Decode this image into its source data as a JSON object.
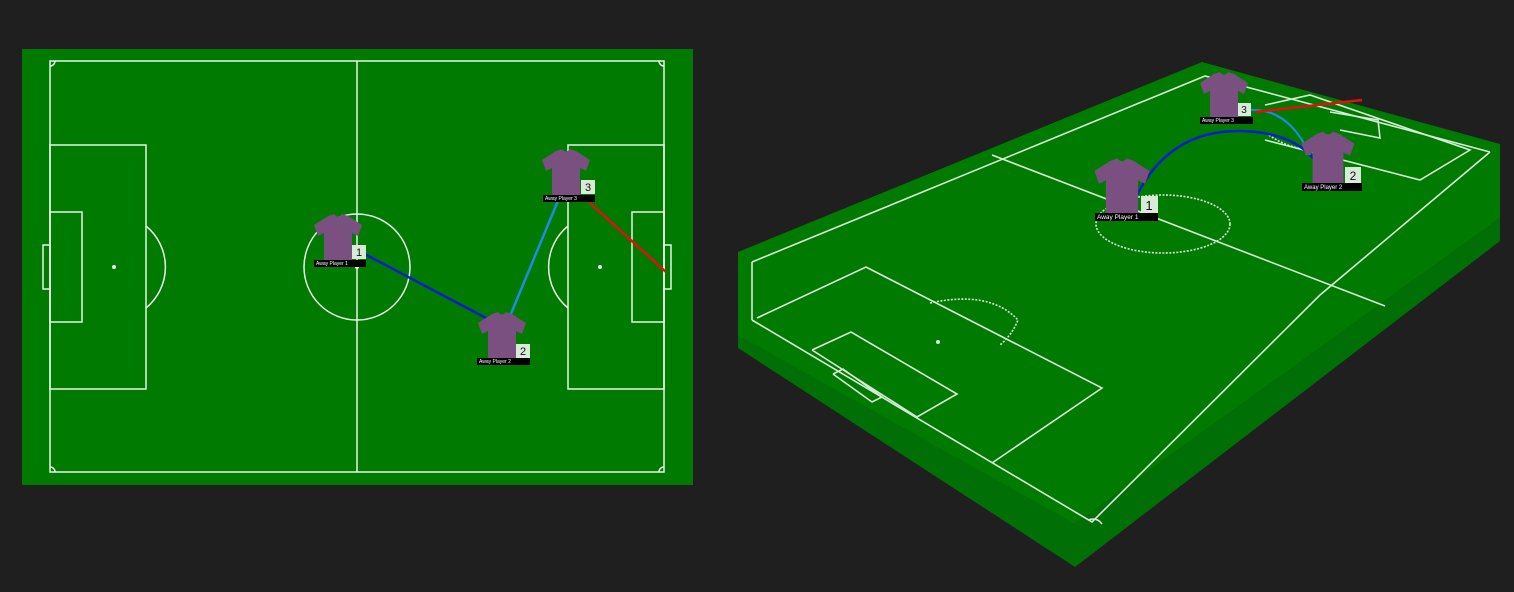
{
  "views": {
    "top_view": {
      "name": "2D pitch"
    },
    "perspective_view": {
      "name": "3D pitch"
    }
  },
  "colors": {
    "background": "#1f1f1f",
    "pitch": "#007a00",
    "pitch_edge": "#00660a",
    "lines": "#e8f5e8",
    "shirt": "#7a5080",
    "pass_dark_blue": "#0a1ccc",
    "pass_light_blue": "#1e8be6",
    "pass_red": "#e01010",
    "number_badge": "#d8ead8",
    "label_bg": "#000000"
  },
  "players": [
    {
      "number": "1",
      "label": "Away Player 1",
      "icon": "shirt-icon"
    },
    {
      "number": "2",
      "label": "Away Player 2",
      "icon": "shirt-icon"
    },
    {
      "number": "3",
      "label": "Away Player 3",
      "icon": "shirt-icon"
    }
  ],
  "passes": [
    {
      "from": "Away Player 2",
      "to": "Away Player 1",
      "color": "dark-blue"
    },
    {
      "from": "Away Player 2",
      "to": "Away Player 3",
      "color": "light-blue"
    },
    {
      "from": "Away Player 3",
      "to": "off-pitch",
      "color": "red"
    }
  ]
}
